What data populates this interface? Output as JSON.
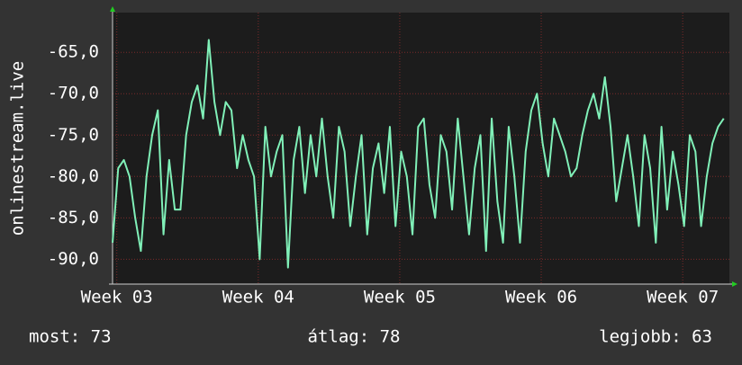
{
  "chart_data": {
    "type": "line",
    "ylabel": "onlinestream.live",
    "x": [
      2.97,
      3.01,
      3.05,
      3.09,
      3.13,
      3.17,
      3.21,
      3.25,
      3.29,
      3.33,
      3.37,
      3.41,
      3.45,
      3.49,
      3.53,
      3.57,
      3.61,
      3.65,
      3.69,
      3.73,
      3.77,
      3.81,
      3.85,
      3.89,
      3.93,
      3.97,
      4.01,
      4.05,
      4.09,
      4.13,
      4.17,
      4.21,
      4.25,
      4.29,
      4.33,
      4.37,
      4.41,
      4.45,
      4.49,
      4.53,
      4.57,
      4.61,
      4.65,
      4.69,
      4.73,
      4.77,
      4.81,
      4.85,
      4.89,
      4.93,
      4.97,
      5.01,
      5.05,
      5.09,
      5.13,
      5.17,
      5.21,
      5.25,
      5.29,
      5.33,
      5.37,
      5.41,
      5.45,
      5.49,
      5.53,
      5.57,
      5.61,
      5.65,
      5.69,
      5.73,
      5.77,
      5.81,
      5.85,
      5.89,
      5.93,
      5.97,
      6.01,
      6.05,
      6.09,
      6.13,
      6.17,
      6.21,
      6.25,
      6.29,
      6.33,
      6.37,
      6.41,
      6.45,
      6.49,
      6.53,
      6.57,
      6.61,
      6.65,
      6.69,
      6.73,
      6.77,
      6.81,
      6.85,
      6.89,
      6.93,
      6.97,
      7.01,
      7.05,
      7.09,
      7.13,
      7.17,
      7.21,
      7.25,
      7.29
    ],
    "series": [
      {
        "color": "#80f0b8",
        "values": [
          -88,
          -79,
          -78,
          -80,
          -85,
          -89,
          -80,
          -75,
          -72,
          -87,
          -78,
          -84,
          -84,
          -75,
          -71,
          -69,
          -73,
          -63.5,
          -71,
          -75,
          -71,
          -72,
          -79,
          -75,
          -78,
          -80,
          -90,
          -74,
          -80,
          -77,
          -75,
          -91,
          -78,
          -74,
          -82,
          -75,
          -80,
          -73,
          -80,
          -85,
          -74,
          -77,
          -86,
          -80,
          -75,
          -87,
          -79,
          -76,
          -82,
          -74,
          -86,
          -77,
          -80,
          -87,
          -74,
          -73,
          -81,
          -85,
          -75,
          -77,
          -84,
          -73,
          -80,
          -87,
          -79,
          -75,
          -89,
          -73,
          -83,
          -88,
          -74,
          -80,
          -88,
          -77,
          -72,
          -70,
          -76,
          -80,
          -73,
          -75,
          -77,
          -80,
          -79,
          -75,
          -72,
          -70,
          -73,
          -68,
          -74,
          -83,
          -79,
          -75,
          -80,
          -86,
          -75,
          -79,
          -88,
          -74,
          -84,
          -77,
          -81,
          -86,
          -75,
          -77,
          -86,
          -80,
          -76,
          -74,
          -73
        ]
      }
    ],
    "xlim": [
      2.97,
      7.33
    ],
    "xticks": [
      {
        "value": 3,
        "label": "Week 03"
      },
      {
        "value": 4,
        "label": "Week 04"
      },
      {
        "value": 5,
        "label": "Week 05"
      },
      {
        "value": 6,
        "label": "Week 06"
      },
      {
        "value": 7,
        "label": "Week 07"
      }
    ],
    "ylim": [
      -93,
      -60.2
    ],
    "yticks": [
      {
        "value": -90,
        "label": "-90,0"
      },
      {
        "value": -85,
        "label": "-85,0"
      },
      {
        "value": -80,
        "label": "-80,0"
      },
      {
        "value": -75,
        "label": "-75,0"
      },
      {
        "value": -70,
        "label": "-70,0"
      },
      {
        "value": -65,
        "label": "-65,0"
      }
    ],
    "grid": true,
    "annotations": [
      "most: 73",
      "átlag: 78",
      "legjobb: 63"
    ]
  }
}
